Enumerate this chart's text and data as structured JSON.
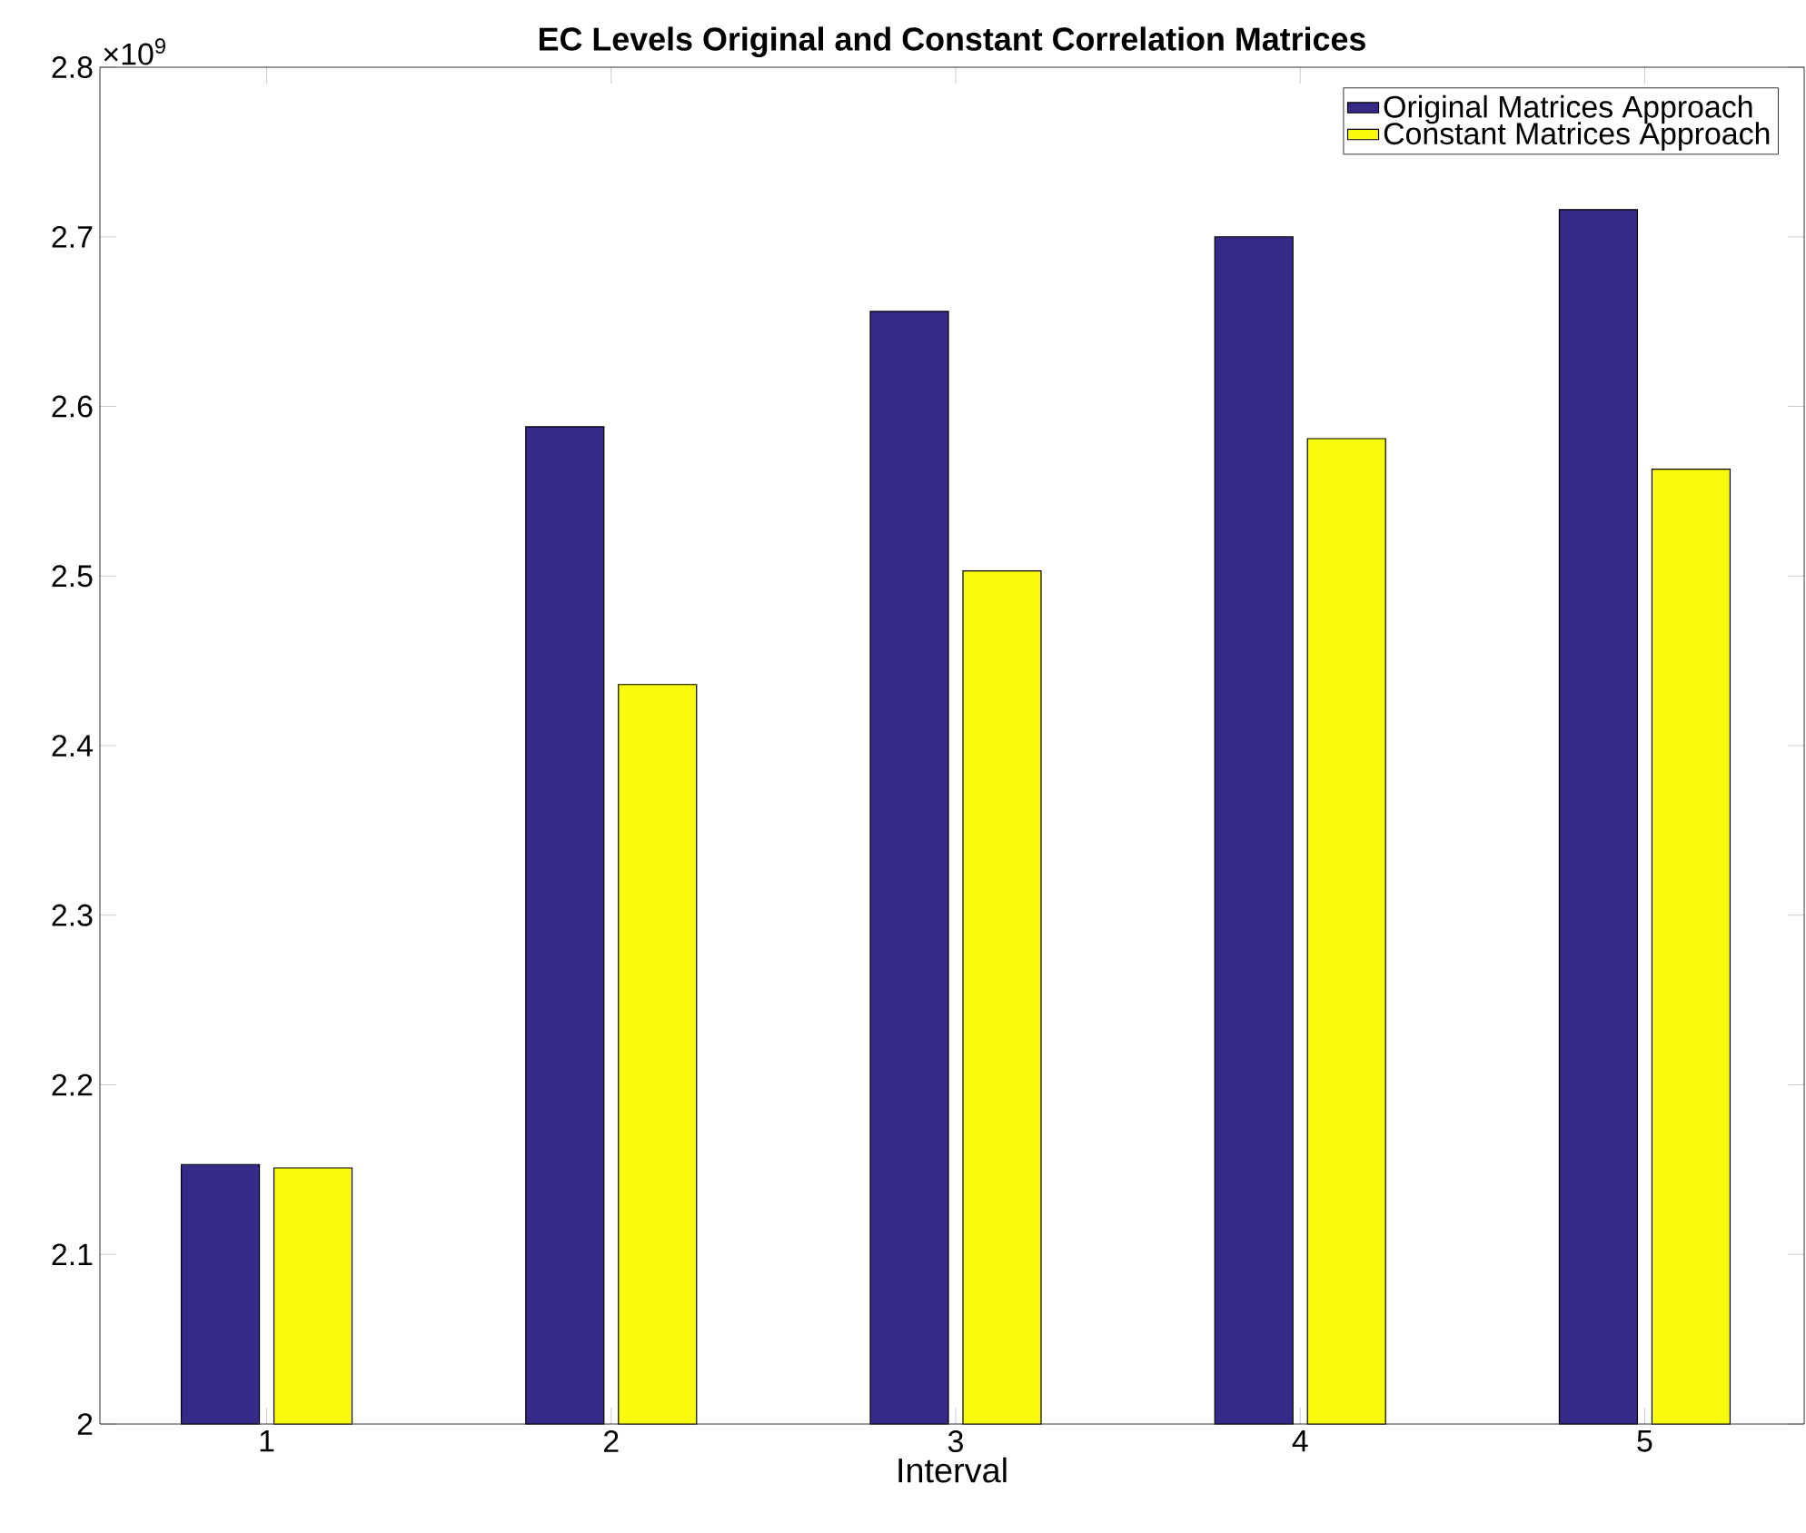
{
  "chart_data": {
    "type": "bar",
    "title": "EC Levels Original and Constant Correlation Matrices",
    "xlabel": "Interval",
    "categories": [
      "1",
      "2",
      "3",
      "4",
      "5"
    ],
    "series": [
      {
        "name": "Original Matrices Approach",
        "color": "#352a87",
        "values": [
          2.153,
          2.588,
          2.656,
          2.7,
          2.716
        ]
      },
      {
        "name": "Constant Matrices Approach",
        "color": "#f9fb0e",
        "values": [
          2.151,
          2.436,
          2.503,
          2.581,
          2.563
        ]
      }
    ],
    "ylim": [
      2,
      2.8
    ],
    "yticks": [
      2,
      2.1,
      2.2,
      2.3,
      2.4,
      2.5,
      2.6,
      2.7,
      2.8
    ],
    "annotations": [
      "×10$^{9}$"
    ],
    "legend": "top right",
    "grid": false
  }
}
